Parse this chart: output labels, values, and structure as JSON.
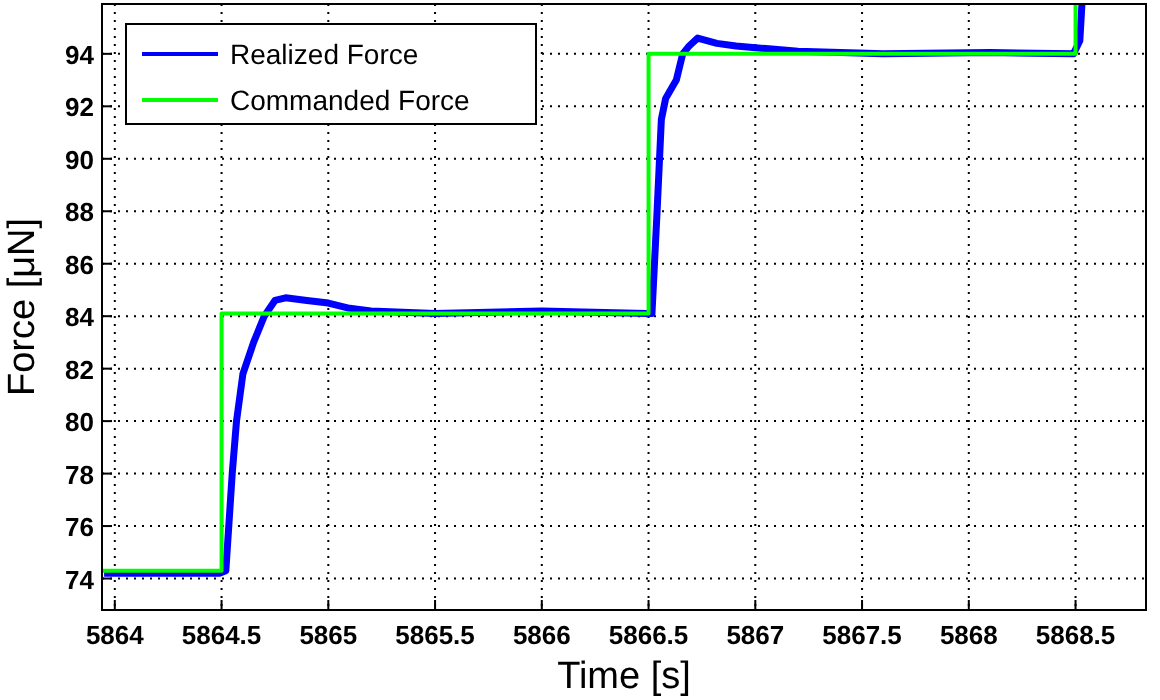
{
  "chart_data": {
    "type": "line",
    "xlabel": "Time [s]",
    "ylabel": "Force [μN]",
    "xlim": [
      5863.94,
      5868.83
    ],
    "ylim": [
      72.8,
      95.9
    ],
    "xticks": [
      5864,
      5864.5,
      5865,
      5865.5,
      5866,
      5866.5,
      5867,
      5867.5,
      5868,
      5868.5
    ],
    "yticks": [
      74,
      76,
      78,
      80,
      82,
      84,
      86,
      88,
      90,
      92,
      94
    ],
    "grid": true,
    "legend": "top left",
    "line_style": "solid",
    "marker": "none",
    "series": [
      {
        "name": "Realized Force",
        "color": "#0000ff",
        "x": [
          5863.95,
          5864.2,
          5864.49,
          5864.52,
          5864.55,
          5864.57,
          5864.6,
          5864.65,
          5864.7,
          5864.75,
          5864.8,
          5864.9,
          5865.0,
          5865.1,
          5865.2,
          5865.5,
          5866.0,
          5866.49,
          5866.516,
          5866.54,
          5866.56,
          5866.58,
          5866.63,
          5866.66,
          5866.69,
          5866.73,
          5866.82,
          5866.91,
          5867.05,
          5867.2,
          5867.6,
          5868.1,
          5868.49,
          5868.52,
          5868.53
        ],
        "values": [
          74.2,
          74.2,
          74.2,
          74.3,
          78,
          80,
          81.8,
          83,
          84,
          84.6,
          84.7,
          84.6,
          84.5,
          84.3,
          84.2,
          84.1,
          84.2,
          84.1,
          84.1,
          88,
          91.5,
          92.3,
          93,
          94,
          94.3,
          94.6,
          94.4,
          94.3,
          94.2,
          94.1,
          94,
          94.05,
          94,
          94.5,
          95.9
        ]
      },
      {
        "name": "Commanded Force",
        "color": "#00ff00",
        "x": [
          5863.94,
          5864.5,
          5864.5,
          5866.5,
          5866.5,
          5868.5,
          5868.5
        ],
        "values": [
          74.3,
          74.3,
          84.1,
          84.1,
          94,
          94,
          95.9
        ]
      }
    ]
  }
}
